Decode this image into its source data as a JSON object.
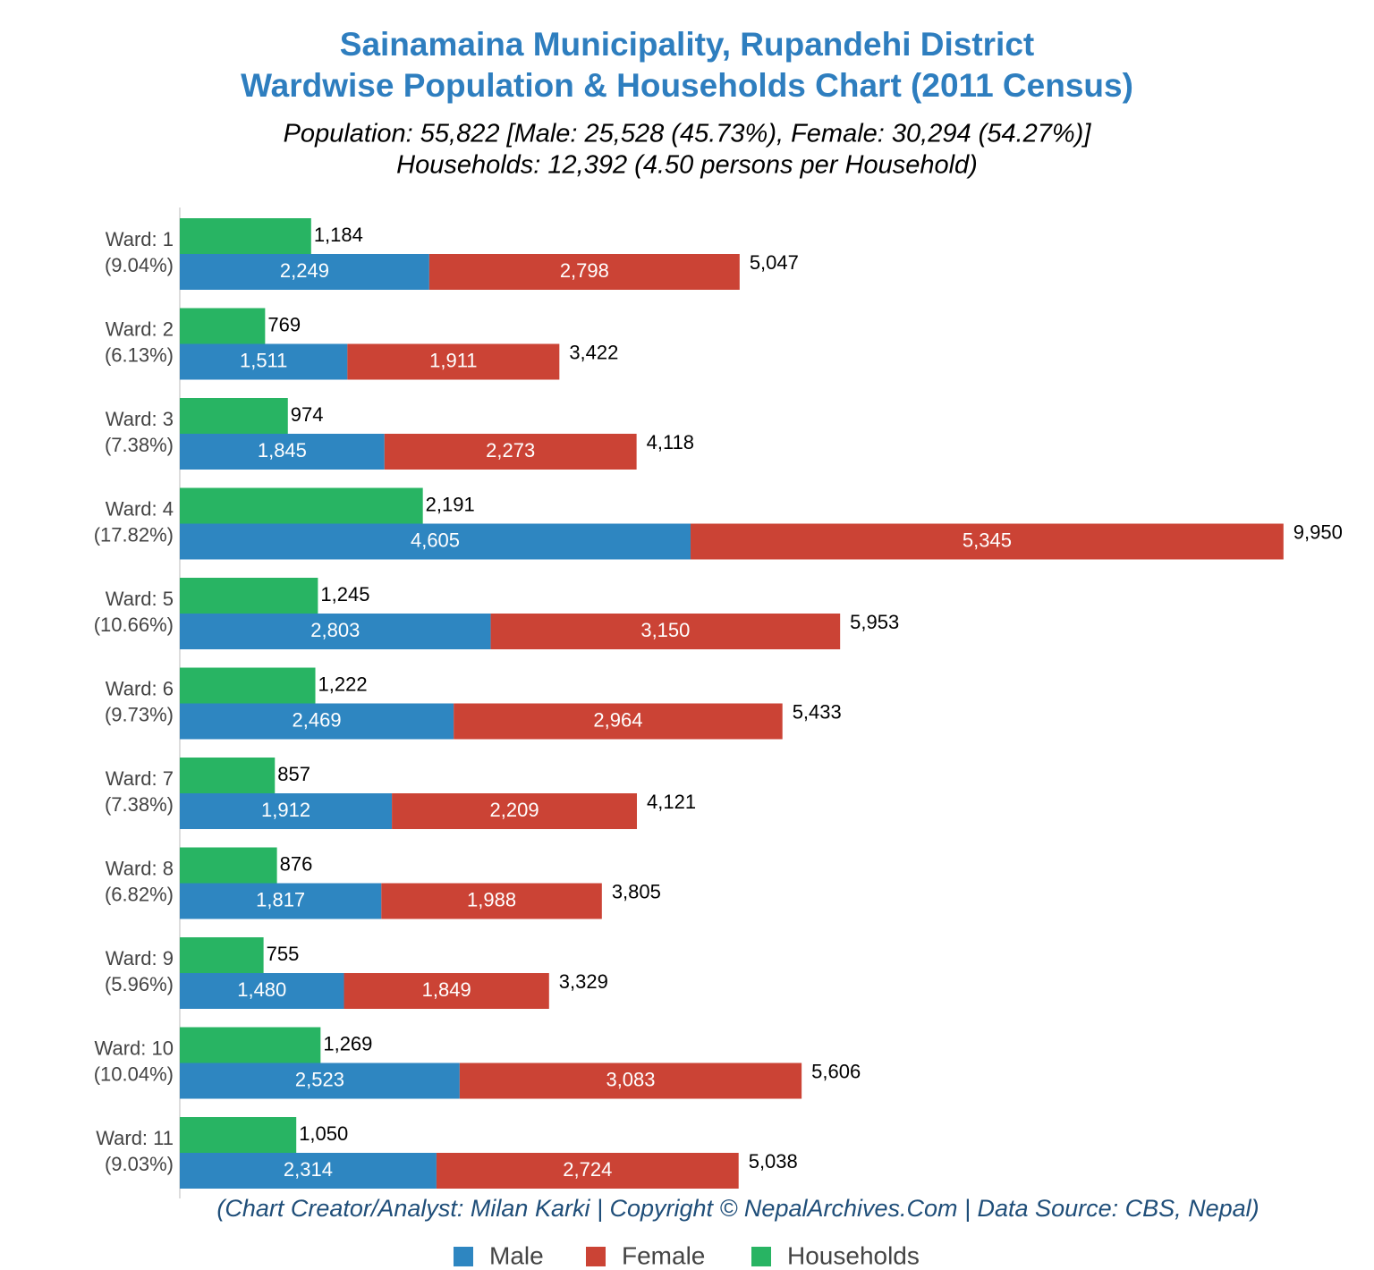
{
  "chart_data": {
    "type": "bar",
    "orientation": "horizontal",
    "title": [
      "Sainamaina Municipality, Rupandehi District",
      "Wardwise Population & Households Chart (2011 Census)"
    ],
    "subtitle": [
      "Population: 55,822 [Male: 25,528 (45.73%), Female: 30,294 (54.27%)]",
      "Households: 12,392 (4.50 persons per Household)"
    ],
    "footer": "(Chart Creator/Analyst: Milan Karki | Copyright © NepalArchives.Com | Data Source: CBS, Nepal)",
    "categories": [
      "Ward: 1",
      "Ward: 2",
      "Ward: 3",
      "Ward: 4",
      "Ward: 5",
      "Ward: 6",
      "Ward: 7",
      "Ward: 8",
      "Ward: 9",
      "Ward: 10",
      "Ward: 11"
    ],
    "category_shares": [
      "(9.04%)",
      "(6.13%)",
      "(7.38%)",
      "(17.82%)",
      "(10.66%)",
      "(9.73%)",
      "(7.38%)",
      "(6.82%)",
      "(5.96%)",
      "(10.04%)",
      "(9.03%)"
    ],
    "series": [
      {
        "name": "Male",
        "color": "#2e86c1",
        "stacked": true,
        "values": [
          2249,
          1511,
          1845,
          4605,
          2803,
          2469,
          1912,
          1817,
          1480,
          2523,
          2314
        ],
        "value_labels": [
          "2,249",
          "1,511",
          "1,845",
          "4,605",
          "2,803",
          "2,469",
          "1,912",
          "1,817",
          "1,480",
          "2,523",
          "2,314"
        ]
      },
      {
        "name": "Female",
        "color": "#cb4335",
        "stacked": true,
        "values": [
          2798,
          1911,
          2273,
          5345,
          3150,
          2964,
          2209,
          1988,
          1849,
          3083,
          2724
        ],
        "value_labels": [
          "2,798",
          "1,911",
          "2,273",
          "5,345",
          "3,150",
          "2,964",
          "2,209",
          "1,988",
          "1,849",
          "3,083",
          "2,724"
        ]
      },
      {
        "name": "Households",
        "color": "#28b463",
        "stacked": false,
        "values": [
          1184,
          769,
          974,
          2191,
          1245,
          1222,
          857,
          876,
          755,
          1269,
          1050
        ],
        "value_labels": [
          "1,184",
          "769",
          "974",
          "2,191",
          "1,245",
          "1,222",
          "857",
          "876",
          "755",
          "1,269",
          "1,050"
        ]
      }
    ],
    "totals": [
      5047,
      3422,
      4118,
      9950,
      5953,
      5433,
      4121,
      3805,
      3329,
      5606,
      5038
    ],
    "total_labels": [
      "5,047",
      "3,422",
      "4,118",
      "9,950",
      "5,953",
      "5,433",
      "4,121",
      "3,805",
      "3,329",
      "5,606",
      "5,038"
    ],
    "xlim": [
      0,
      10000
    ],
    "legend": "bottom"
  }
}
